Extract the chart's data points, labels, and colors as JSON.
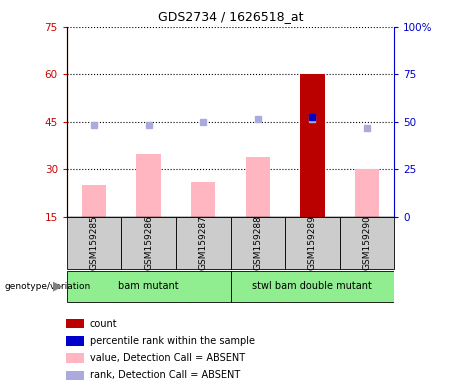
{
  "title": "GDS2734 / 1626518_at",
  "samples": [
    "GSM159285",
    "GSM159286",
    "GSM159287",
    "GSM159288",
    "GSM159289",
    "GSM159290"
  ],
  "ylim_left": [
    15,
    75
  ],
  "ylim_right": [
    0,
    100
  ],
  "yticks_left": [
    15,
    30,
    45,
    60,
    75
  ],
  "yticks_right": [
    0,
    25,
    50,
    75,
    100
  ],
  "pink_bars": [
    25,
    35,
    26,
    34,
    60,
    30
  ],
  "blue_squares": [
    44,
    44,
    45,
    46,
    46,
    43
  ],
  "red_bars": [
    0,
    0,
    0,
    0,
    60,
    0
  ],
  "blue_dots": [
    0,
    0,
    0,
    0,
    46.5,
    0
  ],
  "pink_bar_color": "#ffb6c1",
  "blue_square_color": "#aaaadd",
  "red_bar_color": "#bb0000",
  "blue_dot_color": "#0000cc",
  "left_axis_color": "#cc0000",
  "right_axis_color": "#0000cc",
  "group1_label": "bam mutant",
  "group2_label": "stwl bam double mutant",
  "group_color": "#90ee90",
  "sample_box_color": "#cccccc",
  "legend_items": [
    {
      "label": "count",
      "color": "#bb0000"
    },
    {
      "label": "percentile rank within the sample",
      "color": "#0000cc"
    },
    {
      "label": "value, Detection Call = ABSENT",
      "color": "#ffb6c1"
    },
    {
      "label": "rank, Detection Call = ABSENT",
      "color": "#aaaadd"
    }
  ]
}
